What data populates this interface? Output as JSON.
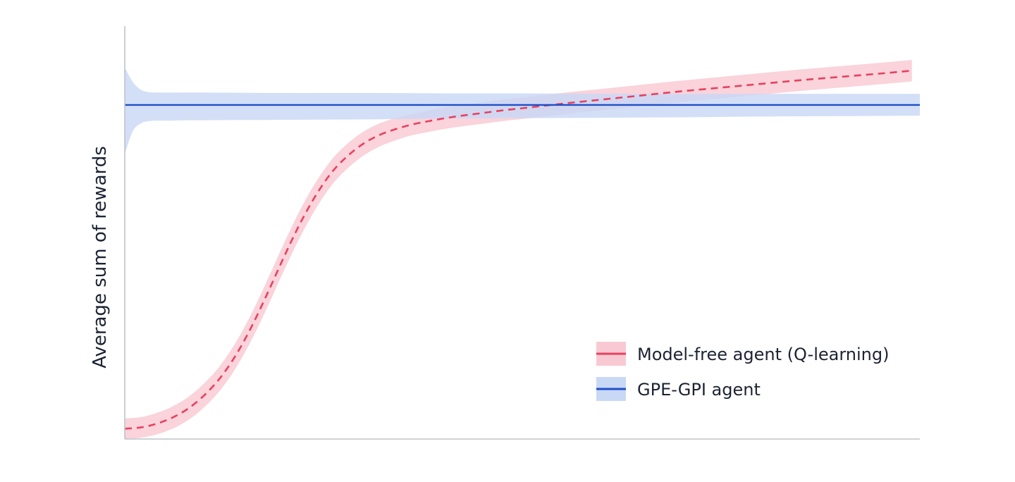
{
  "chart_data": {
    "type": "line",
    "title": "",
    "xlabel": "",
    "ylabel": "Average sum of rewards",
    "x_ticks_shown": false,
    "y_ticks_shown": false,
    "grid": false,
    "legend_position": "bottom-right",
    "xlim": [
      0,
      100
    ],
    "ylim": [
      0,
      100
    ],
    "series": [
      {
        "name": "Model-free agent (Q-learning)",
        "line_style": "dashed",
        "color": "#e8415f",
        "band_color": "#f9c9d3",
        "x": [
          0,
          2,
          4,
          6,
          8,
          10,
          12,
          14,
          16,
          18,
          20,
          22,
          24,
          26,
          28,
          30,
          32,
          34,
          36,
          38,
          40,
          42,
          44,
          46,
          48,
          50,
          55,
          60,
          65,
          70,
          75,
          80,
          85,
          90,
          95,
          99
        ],
        "y": [
          2.5,
          2.8,
          3.7,
          5.2,
          7.4,
          10.6,
          14.8,
          20.4,
          27.4,
          35.5,
          44.0,
          52.0,
          58.9,
          64.5,
          68.5,
          71.5,
          73.6,
          75.0,
          76.1,
          76.9,
          77.6,
          78.2,
          78.7,
          79.2,
          79.7,
          80.1,
          81.2,
          82.2,
          83.2,
          84.2,
          85.1,
          86.0,
          86.9,
          87.7,
          88.5,
          89.2
        ],
        "band_half_width": [
          2.5,
          2.5,
          2.6,
          2.7,
          2.8,
          2.9,
          3.0,
          3.1,
          3.2,
          3.3,
          3.3,
          3.3,
          3.2,
          3.1,
          3.0,
          2.9,
          2.8,
          2.7,
          2.6,
          2.6,
          2.6,
          2.6,
          2.6,
          2.6,
          2.6,
          2.6,
          2.6,
          2.6,
          2.6,
          2.6,
          2.6,
          2.6,
          2.6,
          2.6,
          2.6,
          2.6
        ]
      },
      {
        "name": "GPE-GPI agent",
        "line_style": "solid",
        "color": "#1f4fc7",
        "band_color": "#c9d8f5",
        "x": [
          0,
          1,
          2,
          3,
          4,
          5,
          6,
          8,
          10,
          20,
          30,
          40,
          50,
          60,
          70,
          80,
          90,
          100
        ],
        "y": [
          80.9,
          80.9,
          80.9,
          80.9,
          80.9,
          80.9,
          80.9,
          80.9,
          80.9,
          80.9,
          80.9,
          80.9,
          80.9,
          80.9,
          80.9,
          80.9,
          80.9,
          80.9
        ],
        "band_upper": [
          90.0,
          86.5,
          84.6,
          84.0,
          83.9,
          83.9,
          83.9,
          83.9,
          83.9,
          83.8,
          83.8,
          83.7,
          83.7,
          83.6,
          83.6,
          83.6,
          83.6,
          83.6
        ],
        "band_lower": [
          69.0,
          74.5,
          76.4,
          77.0,
          77.1,
          77.1,
          77.1,
          77.2,
          77.2,
          77.3,
          77.4,
          77.6,
          77.7,
          77.8,
          77.9,
          78.1,
          78.2,
          78.3
        ]
      }
    ]
  }
}
